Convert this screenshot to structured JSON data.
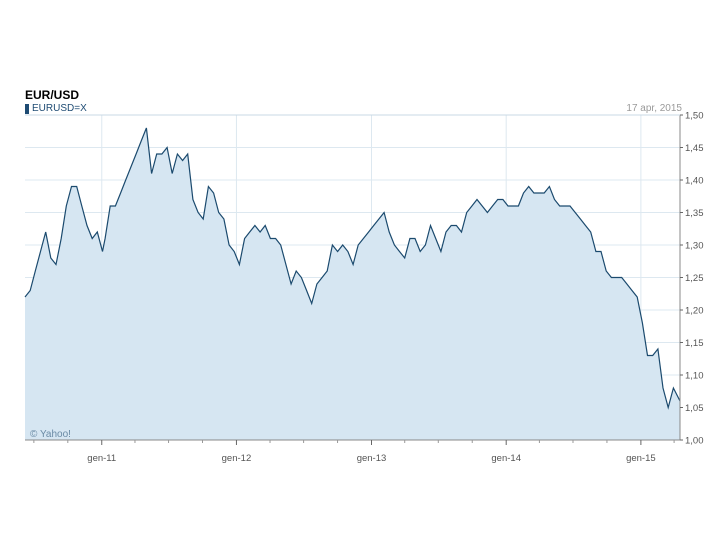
{
  "header": {
    "title": "EUR/USD",
    "symbol": "EURUSD=X",
    "date": "17 apr, 2015"
  },
  "watermark": "© Yahoo!",
  "colors": {
    "line": "#1b4a6e",
    "fill": "#d6e6f2",
    "grid": "#dde8f0",
    "legend": "#1e4b73"
  },
  "chart_data": {
    "type": "area",
    "title": "EUR/USD",
    "series": [
      {
        "name": "EURUSD=X",
        "x": [
          "2010-06-07",
          "2010-06-21",
          "2010-07-05",
          "2010-07-19",
          "2010-08-02",
          "2010-08-16",
          "2010-08-30",
          "2010-09-13",
          "2010-09-27",
          "2010-10-11",
          "2010-10-25",
          "2010-11-08",
          "2010-11-22",
          "2010-12-06",
          "2010-12-20",
          "2011-01-03",
          "2011-01-10",
          "2011-01-24",
          "2011-02-07",
          "2011-02-21",
          "2011-03-07",
          "2011-03-21",
          "2011-04-04",
          "2011-04-18",
          "2011-05-02",
          "2011-05-16",
          "2011-05-30",
          "2011-06-13",
          "2011-06-27",
          "2011-07-11",
          "2011-07-25",
          "2011-08-08",
          "2011-08-22",
          "2011-09-05",
          "2011-09-19",
          "2011-10-03",
          "2011-10-17",
          "2011-10-31",
          "2011-11-14",
          "2011-11-28",
          "2011-12-12",
          "2011-12-26",
          "2012-01-09",
          "2012-01-23",
          "2012-02-06",
          "2012-02-20",
          "2012-03-05",
          "2012-03-19",
          "2012-04-02",
          "2012-04-16",
          "2012-04-30",
          "2012-05-14",
          "2012-05-28",
          "2012-06-11",
          "2012-06-25",
          "2012-07-09",
          "2012-07-23",
          "2012-08-06",
          "2012-08-20",
          "2012-09-03",
          "2012-09-17",
          "2012-10-01",
          "2012-10-15",
          "2012-10-29",
          "2012-11-12",
          "2012-11-26",
          "2012-12-10",
          "2012-12-24",
          "2013-01-07",
          "2013-01-21",
          "2013-02-04",
          "2013-02-18",
          "2013-03-04",
          "2013-03-18",
          "2013-04-01",
          "2013-04-15",
          "2013-04-29",
          "2013-05-13",
          "2013-05-27",
          "2013-06-10",
          "2013-06-24",
          "2013-07-08",
          "2013-07-22",
          "2013-08-05",
          "2013-08-19",
          "2013-09-02",
          "2013-09-16",
          "2013-09-30",
          "2013-10-14",
          "2013-10-28",
          "2013-11-11",
          "2013-11-25",
          "2013-12-09",
          "2013-12-23",
          "2014-01-06",
          "2014-01-20",
          "2014-02-03",
          "2014-02-17",
          "2014-03-03",
          "2014-03-17",
          "2014-03-31",
          "2014-04-14",
          "2014-04-28",
          "2014-05-12",
          "2014-05-26",
          "2014-06-09",
          "2014-06-23",
          "2014-07-07",
          "2014-07-21",
          "2014-08-04",
          "2014-08-18",
          "2014-09-01",
          "2014-09-15",
          "2014-09-29",
          "2014-10-13",
          "2014-10-27",
          "2014-11-10",
          "2014-11-24",
          "2014-12-08",
          "2014-12-22",
          "2015-01-05",
          "2015-01-19",
          "2015-02-02",
          "2015-02-16",
          "2015-03-02",
          "2015-03-16",
          "2015-03-30",
          "2015-04-17"
        ],
        "y": [
          1.22,
          1.23,
          1.26,
          1.29,
          1.32,
          1.28,
          1.27,
          1.31,
          1.36,
          1.39,
          1.39,
          1.36,
          1.33,
          1.31,
          1.32,
          1.29,
          1.31,
          1.36,
          1.36,
          1.38,
          1.4,
          1.42,
          1.44,
          1.46,
          1.48,
          1.41,
          1.44,
          1.44,
          1.45,
          1.41,
          1.44,
          1.43,
          1.44,
          1.37,
          1.35,
          1.34,
          1.39,
          1.38,
          1.35,
          1.34,
          1.3,
          1.29,
          1.27,
          1.31,
          1.32,
          1.33,
          1.32,
          1.33,
          1.31,
          1.31,
          1.3,
          1.27,
          1.24,
          1.26,
          1.25,
          1.23,
          1.21,
          1.24,
          1.25,
          1.26,
          1.3,
          1.29,
          1.3,
          1.29,
          1.27,
          1.3,
          1.31,
          1.32,
          1.33,
          1.34,
          1.35,
          1.32,
          1.3,
          1.29,
          1.28,
          1.31,
          1.31,
          1.29,
          1.3,
          1.33,
          1.31,
          1.29,
          1.32,
          1.33,
          1.33,
          1.32,
          1.35,
          1.36,
          1.37,
          1.36,
          1.35,
          1.36,
          1.37,
          1.37,
          1.36,
          1.36,
          1.36,
          1.38,
          1.39,
          1.38,
          1.38,
          1.38,
          1.39,
          1.37,
          1.36,
          1.36,
          1.36,
          1.35,
          1.34,
          1.33,
          1.32,
          1.29,
          1.29,
          1.26,
          1.25,
          1.25,
          1.25,
          1.24,
          1.23,
          1.22,
          1.18,
          1.13,
          1.13,
          1.14,
          1.08,
          1.05,
          1.08,
          1.06
        ]
      }
    ],
    "xticks": [
      "gen-11",
      "gen-12",
      "gen-13",
      "gen-14",
      "gen-15"
    ],
    "xtick_dates": [
      "2011-01-01",
      "2012-01-01",
      "2013-01-01",
      "2014-01-01",
      "2015-01-01"
    ],
    "xlim": [
      "2010-06-07",
      "2015-04-17"
    ],
    "yticks": [
      "1,50",
      "1,45",
      "1,40",
      "1,35",
      "1,30",
      "1,25",
      "1,20",
      "1,15",
      "1,10",
      "1,05",
      "1,00"
    ],
    "ytick_values": [
      1.5,
      1.45,
      1.4,
      1.35,
      1.3,
      1.25,
      1.2,
      1.15,
      1.1,
      1.05,
      1.0
    ],
    "ylim": [
      1.0,
      1.5
    ],
    "grid": true,
    "y_axis_position": "right"
  }
}
